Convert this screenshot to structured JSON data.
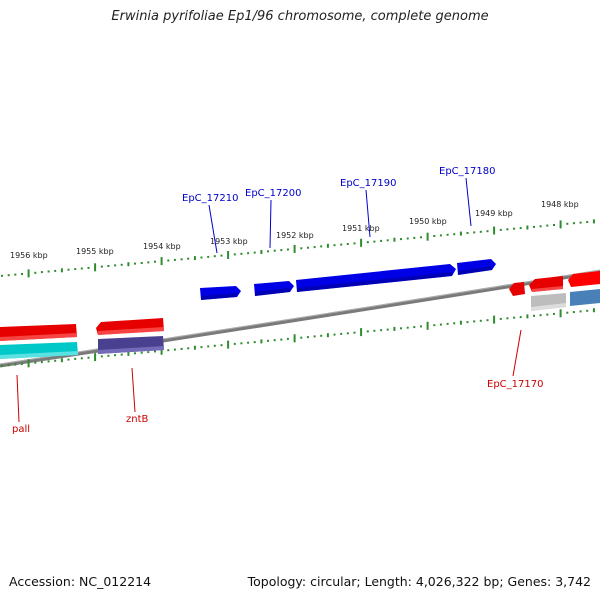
{
  "title": "Erwinia pyrifoliae Ep1/96 chromosome, complete genome",
  "footer": {
    "accession": "Accession: NC_012214",
    "summary": "Topology: circular; Length: 4,026,322 bp; Genes: 3,742"
  },
  "colors": {
    "backbone": "#7a7a7a",
    "tick": "#2e8b2e",
    "top_label": "#0000cc",
    "bottom_label": "#cc0000"
  },
  "top_scale": {
    "labels": [
      "1956 kbp",
      "1955 kbp",
      "1954 kbp",
      "1953 kbp",
      "1952 kbp",
      "1951 kbp",
      "1950 kbp",
      "1949 kbp",
      "1948 kbp"
    ]
  },
  "genes": {
    "top": [
      {
        "label": "EpC_17210",
        "color": "#0000e6"
      },
      {
        "label": "EpC_17200",
        "color": "#0000e6"
      },
      {
        "label": "EpC_17190",
        "color": "#0000e6"
      },
      {
        "label": "EpC_17180",
        "color": "#0000e6"
      }
    ],
    "bottom": [
      {
        "label": "pall",
        "color": "#e60000"
      },
      {
        "label": "zntB",
        "color": "#e60000"
      },
      {
        "label": "EpC_17170",
        "color": "#e60000"
      }
    ],
    "unlabeled_colors": [
      "#00c8c8",
      "#4a4090",
      "#bdbdbd",
      "#4a80b8",
      "#ff0000"
    ]
  }
}
